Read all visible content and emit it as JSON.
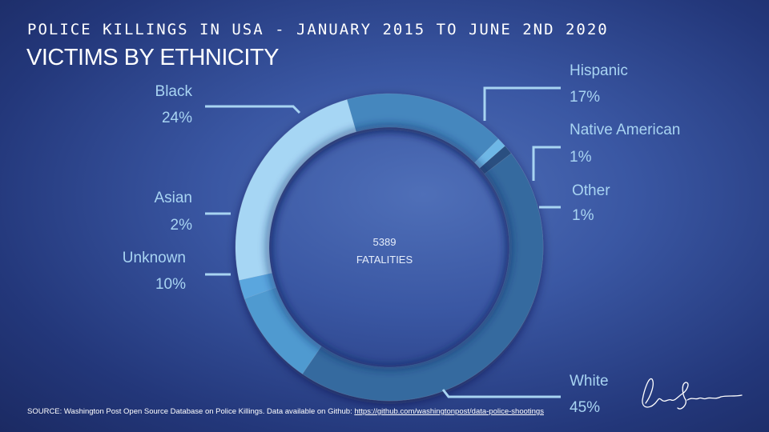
{
  "supertitle": "POLICE KILLINGS IN USA - JANUARY 2015 TO JUNE 2ND 2020",
  "title": "VICTIMS BY ETHNICITY",
  "chart_data": {
    "type": "pie",
    "variant": "donut",
    "center_value": "5389",
    "center_label": "FATALITIES",
    "slices": [
      {
        "name": "Hispanic",
        "value": 17,
        "label": "17%",
        "color": "#4587be"
      },
      {
        "name": "Native American",
        "value": 1,
        "label": "1%",
        "color": "#6eb7e6"
      },
      {
        "name": "Other",
        "value": 1,
        "label": "1%",
        "color": "#2a4f80"
      },
      {
        "name": "White",
        "value": 45,
        "label": "45%",
        "color": "#356a9f"
      },
      {
        "name": "Unknown",
        "value": 10,
        "label": "10%",
        "color": "#509ad0"
      },
      {
        "name": "Asian",
        "value": 2,
        "label": "2%",
        "color": "#5aa6de"
      },
      {
        "name": "Black",
        "value": 24,
        "label": "24%",
        "color": "#a6d6f4"
      }
    ]
  },
  "source": {
    "text": "SOURCE: Washington Post Open Source Database on Police Killings. Data available on Github: ",
    "link": "https://github.com/washingtonpost/data-police-shootings"
  }
}
